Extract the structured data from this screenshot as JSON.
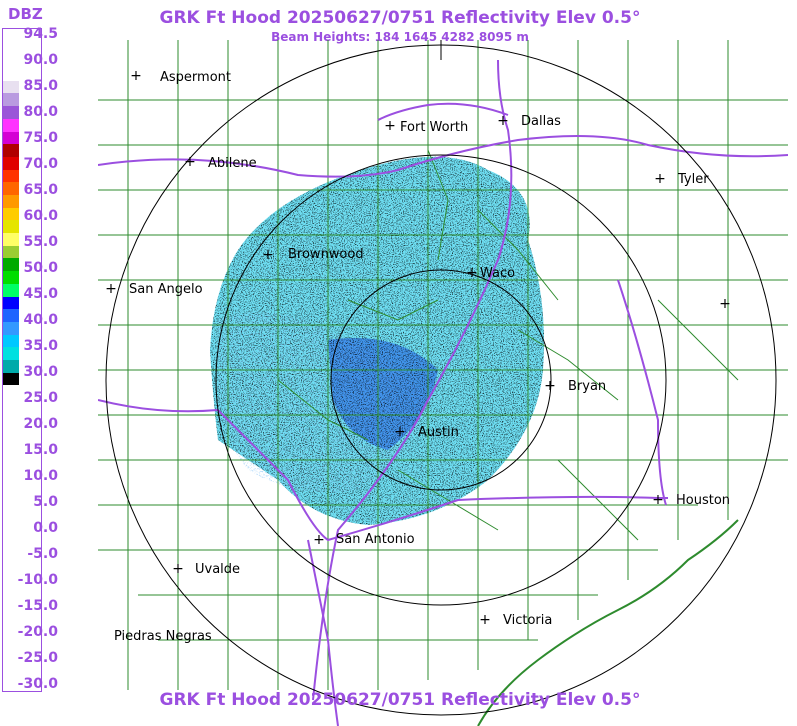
{
  "title": "GRK Ft Hood 20250627/0751 Reflectivity Elev 0.5°",
  "subtitle": "Beam Heights: 184 1645 4282 8095 m",
  "footer_title": "GRK Ft Hood 20250627/0751 Reflectivity Elev 0.5°",
  "legend": {
    "unit": "DBZ",
    "labels": [
      "94.5",
      "90.0",
      "85.0",
      "80.0",
      "75.0",
      "70.0",
      "65.0",
      "60.0",
      "55.0",
      "50.0",
      "45.0",
      "40.0",
      "35.0",
      "30.0",
      "25.0",
      "20.0",
      "15.0",
      "10.0",
      "5.0",
      "0.0",
      "-5.0",
      "-10.0",
      "-15.0",
      "-20.0",
      "-25.0",
      "-30.0"
    ],
    "colors": [
      "#ffffff",
      "#ffffff",
      "#ffffff",
      "#ffffff",
      "#e8e0f0",
      "#b99be0",
      "#9a55d8",
      "#ff33ff",
      "#d400d4",
      "#b00000",
      "#e00000",
      "#ff3300",
      "#ff6600",
      "#ff9900",
      "#ffcc00",
      "#e5e500",
      "#ffff66",
      "#9acd32",
      "#00aa00",
      "#00dd00",
      "#00ff66",
      "#0000ff",
      "#1e64ff",
      "#3399ff",
      "#00c8ff",
      "#00e0e0",
      "#00aaaa",
      "#000000",
      "#ffffff",
      "#ffffff",
      "#ffffff",
      "#ffffff",
      "#ffffff",
      "#ffffff",
      "#ffffff",
      "#ffffff",
      "#ffffff",
      "#ffffff",
      "#ffffff",
      "#ffffff",
      "#ffffff",
      "#ffffff",
      "#ffffff",
      "#ffffff",
      "#ffffff",
      "#ffffff",
      "#ffffff",
      "#ffffff",
      "#ffffff",
      "#ffffff",
      "#ffffff",
      "#ffffff"
    ]
  },
  "cities": [
    {
      "name": "Aspermont"
    },
    {
      "name": "Abilene"
    },
    {
      "name": "Fort Worth"
    },
    {
      "name": "Dallas"
    },
    {
      "name": "Tyler"
    },
    {
      "name": "Brownwood"
    },
    {
      "name": "Waco"
    },
    {
      "name": "San Angelo"
    },
    {
      "name": "Bryan"
    },
    {
      "name": "Austin"
    },
    {
      "name": "Houston"
    },
    {
      "name": "San Antonio"
    },
    {
      "name": "Uvalde"
    },
    {
      "name": "Victoria"
    },
    {
      "name": "Piedras Negras"
    }
  ],
  "colors": {
    "title": "#9b4fe0",
    "county_lines": "#2e8b2e",
    "highways": "#9b4fe0",
    "range_rings": "#000000",
    "echo_light": "#55d8f0",
    "echo_blue": "#3c8cf0",
    "echo_deep": "#1e5ae6",
    "echo_dark": "#0a2a3a"
  }
}
